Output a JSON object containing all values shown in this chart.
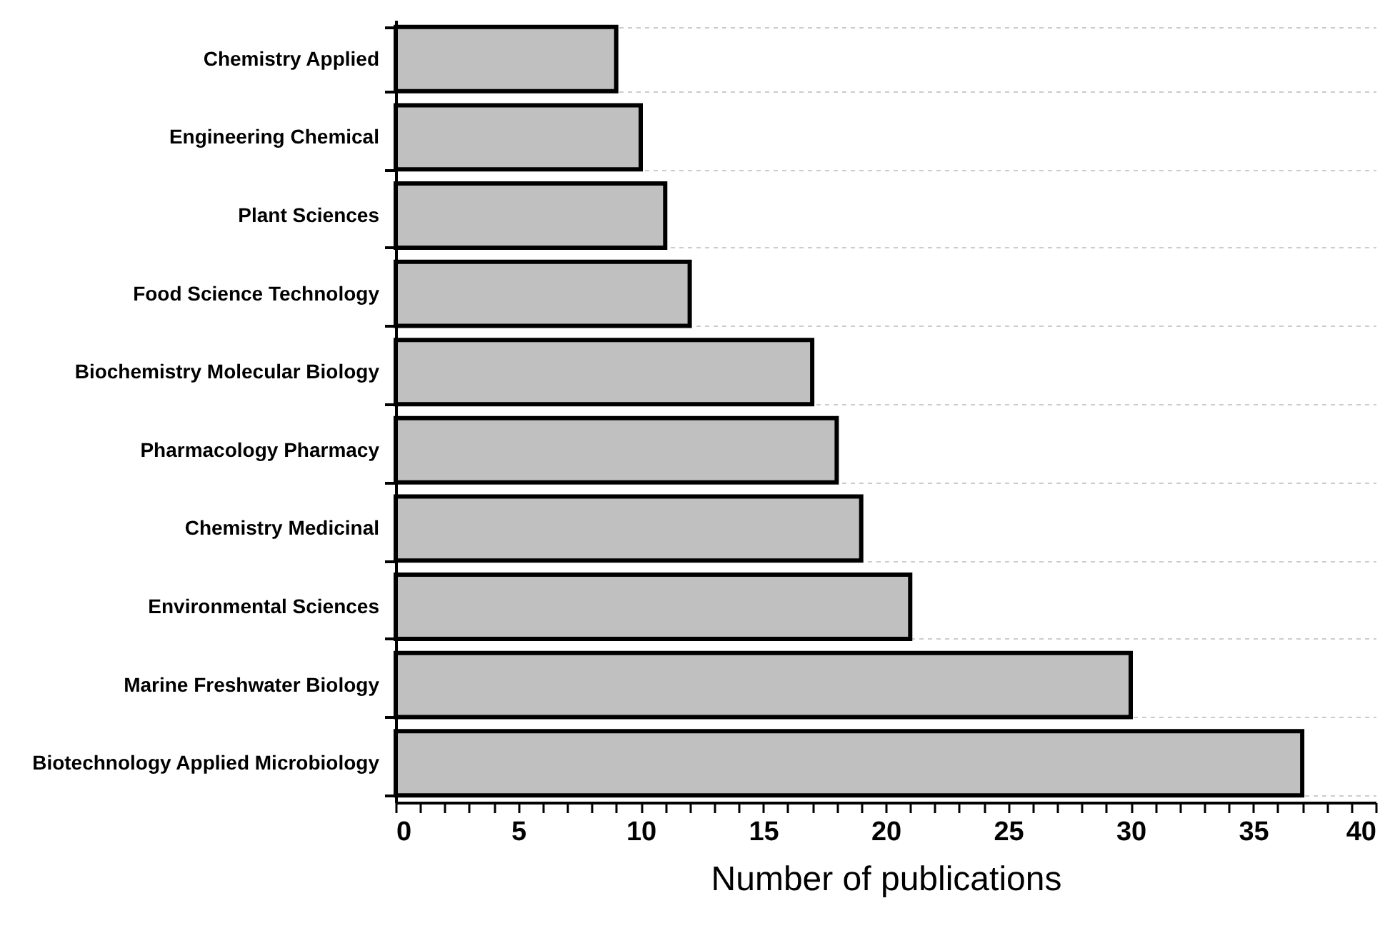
{
  "chart_data": {
    "type": "bar",
    "orientation": "horizontal",
    "xlabel": "Number of publications",
    "categories": [
      "Chemistry Applied",
      "Engineering Chemical",
      "Plant Sciences",
      "Food Science Technology",
      "Biochemistry Molecular Biology",
      "Pharmacology Pharmacy",
      "Chemistry Medicinal",
      "Environmental Sciences",
      "Marine Freshwater Biology",
      "Biotechnology Applied Microbiology"
    ],
    "values": [
      9,
      10,
      11,
      12,
      17,
      18,
      19,
      21,
      30,
      37
    ],
    "color": "#c0c0c0",
    "xlim": [
      0,
      40
    ],
    "xticks": [
      0,
      {
        "value": 1,
        "label": null
      },
      {
        "value": 2,
        "label": null
      },
      {
        "value": 3,
        "label": null
      },
      {
        "value": 4,
        "label": null
      },
      5,
      {
        "value": 6,
        "label": null
      },
      {
        "value": 7,
        "label": null
      },
      {
        "value": 8,
        "label": null
      },
      {
        "value": 9,
        "label": null
      },
      10,
      {
        "value": 11,
        "label": null
      },
      {
        "value": 12,
        "label": null
      },
      {
        "value": 13,
        "label": null
      },
      {
        "value": 14,
        "label": null
      },
      15,
      {
        "value": 16,
        "label": null
      },
      {
        "value": 17,
        "label": null
      },
      {
        "value": 18,
        "label": null
      },
      {
        "value": 19,
        "label": null
      },
      20,
      {
        "value": 21,
        "label": null
      },
      {
        "value": 22,
        "label": null
      },
      {
        "value": 23,
        "label": null
      },
      {
        "value": 24,
        "label": null
      },
      25,
      {
        "value": 26,
        "label": null
      },
      {
        "value": 27,
        "label": null
      },
      {
        "value": 28,
        "label": null
      },
      {
        "value": 29,
        "label": null
      },
      30,
      {
        "value": 31,
        "label": null
      },
      {
        "value": 32,
        "label": null
      },
      {
        "value": 33,
        "label": null
      },
      {
        "value": 34,
        "label": null
      },
      35,
      {
        "value": 36,
        "label": null
      },
      {
        "value": 37,
        "label": null
      },
      {
        "value": 38,
        "label": null
      },
      {
        "value": 39,
        "label": null
      },
      40
    ],
    "grid": "y"
  }
}
